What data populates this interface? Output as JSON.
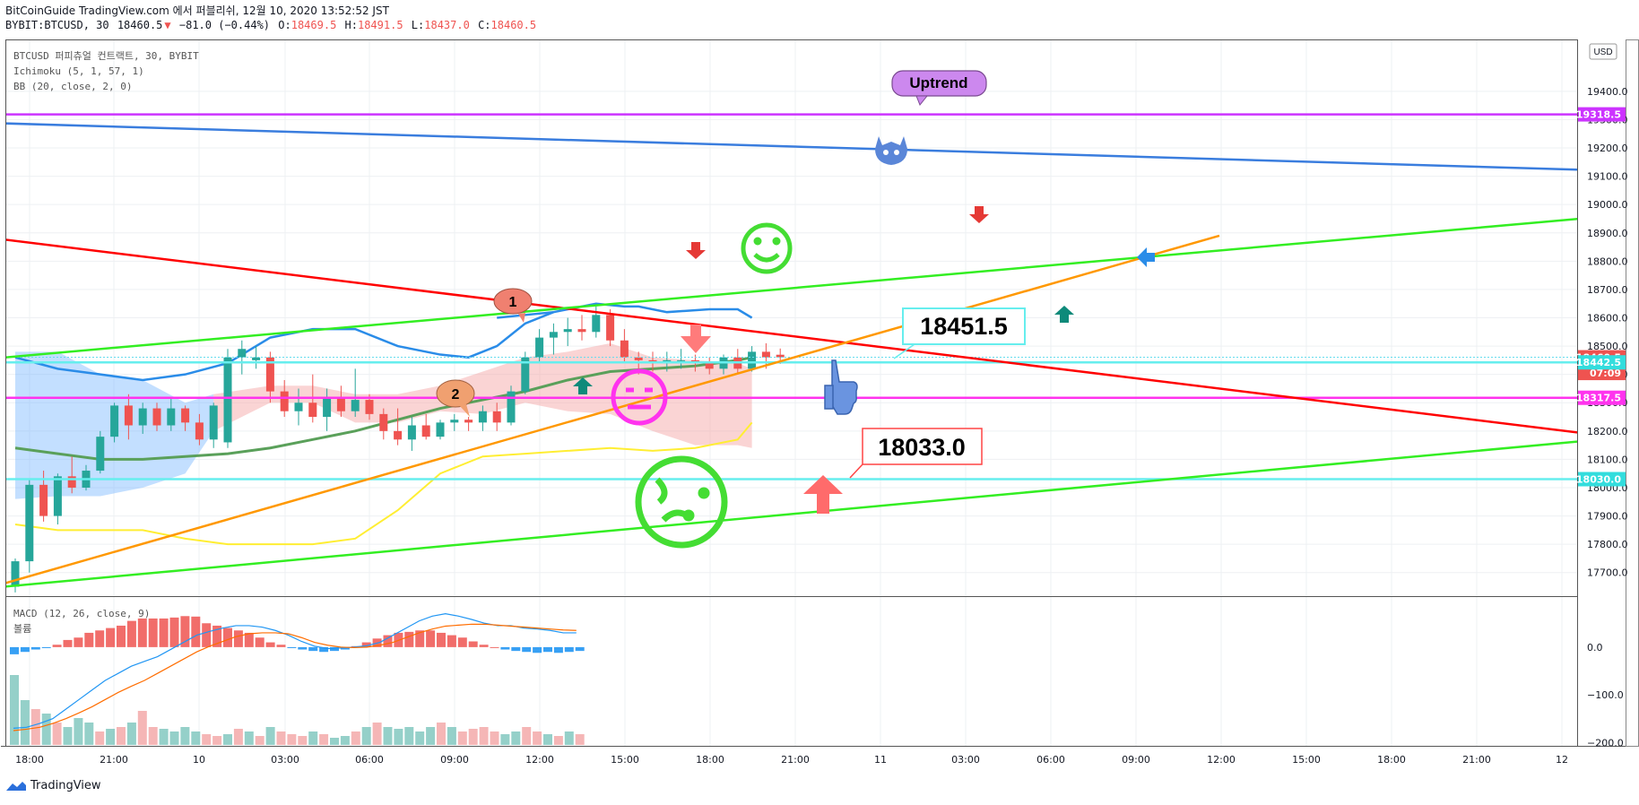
{
  "header": {
    "line1": "BitCoinGuide TradingView.com 에서 퍼블리쉬, 12월 10, 2020 13:52:52 JST",
    "symbol": "BYBIT:BTCUSD, 30",
    "last": "18460.5",
    "change": "−81.0 (−0.44%)",
    "o_label": "O:",
    "o": "18469.5",
    "h_label": "H:",
    "h": "18491.5",
    "l_label": "L:",
    "l": "18437.0",
    "c_label": "C:",
    "c": "18460.5"
  },
  "legend": {
    "line1": "BTCUSD 퍼피츄얼 컨트랙트, 30, BYBIT",
    "line2": "Ichimoku (5, 1, 57, 1)",
    "line3": "BB (20, close, 2, 0)"
  },
  "macd_legend": {
    "line1": "MACD (12, 26, close, 9)",
    "line2": "볼륨"
  },
  "currency": "USD",
  "footer": {
    "brand": "TradingView"
  },
  "colors": {
    "up": "#26a69a",
    "down": "#ef5350",
    "red_line": "#ff0000",
    "green_line": "#33ee22",
    "blue_line": "#3a7dde",
    "orange_line": "#ff9800",
    "purple_line": "#cc33ff",
    "magenta_line": "#ff33ee",
    "cyan_line": "#66eeee",
    "bb": "#2a8ce8",
    "lagging": "#5aa05a",
    "yellow": "#ffee33"
  },
  "chart_data": {
    "type": "candlestick",
    "instrument": "BYBIT:BTCUSD",
    "interval": "30",
    "y_range": [
      17620,
      19580
    ],
    "price_ticks": [
      "19400.0",
      "19300.0",
      "19200.0",
      "19100.0",
      "19000.0",
      "18900.0",
      "18800.0",
      "18700.0",
      "18600.0",
      "18500.0",
      "18400.0",
      "18300.0",
      "18200.0",
      "18100.0",
      "18000.0",
      "17900.0",
      "17800.0",
      "17700.0"
    ],
    "time_ticks": [
      "18:00",
      "21:00",
      "10",
      "03:00",
      "06:00",
      "09:00",
      "12:00",
      "15:00",
      "18:00",
      "21:00",
      "11",
      "03:00",
      "06:00",
      "09:00",
      "12:00",
      "15:00",
      "18:00",
      "21:00",
      "12"
    ],
    "price_labels": [
      {
        "text": "19318.5",
        "value": 19318.5,
        "color": "#cc33ff"
      },
      {
        "text": "18460.5",
        "value": 18460.5,
        "color": "#ef5350"
      },
      {
        "text": "07:09",
        "value": 18405,
        "color": "#ef5350"
      },
      {
        "text": "18442.5",
        "value": 18442.5,
        "color": "#33dddd"
      },
      {
        "text": "18317.5",
        "value": 18317.5,
        "color": "#ff33ee"
      },
      {
        "text": "18030.0",
        "value": 18030,
        "color": "#33dddd"
      }
    ],
    "candles": [
      {
        "o": 17650,
        "h": 17750,
        "l": 17630,
        "c": 17740
      },
      {
        "o": 17740,
        "h": 18030,
        "l": 17700,
        "c": 18010
      },
      {
        "o": 18010,
        "h": 18060,
        "l": 17880,
        "c": 17900
      },
      {
        "o": 17900,
        "h": 18050,
        "l": 17870,
        "c": 18040
      },
      {
        "o": 18040,
        "h": 18110,
        "l": 17980,
        "c": 18000
      },
      {
        "o": 18000,
        "h": 18080,
        "l": 17990,
        "c": 18060
      },
      {
        "o": 18060,
        "h": 18200,
        "l": 18050,
        "c": 18180
      },
      {
        "o": 18180,
        "h": 18300,
        "l": 18160,
        "c": 18290
      },
      {
        "o": 18290,
        "h": 18330,
        "l": 18170,
        "c": 18220
      },
      {
        "o": 18220,
        "h": 18300,
        "l": 18190,
        "c": 18280
      },
      {
        "o": 18280,
        "h": 18300,
        "l": 18200,
        "c": 18220
      },
      {
        "o": 18220,
        "h": 18320,
        "l": 18200,
        "c": 18280
      },
      {
        "o": 18280,
        "h": 18290,
        "l": 18200,
        "c": 18230
      },
      {
        "o": 18230,
        "h": 18260,
        "l": 18150,
        "c": 18170
      },
      {
        "o": 18170,
        "h": 18300,
        "l": 18140,
        "c": 18290
      },
      {
        "o": 18160,
        "h": 18490,
        "l": 18140,
        "c": 18460
      },
      {
        "o": 18460,
        "h": 18520,
        "l": 18400,
        "c": 18490
      },
      {
        "o": 18450,
        "h": 18500,
        "l": 18420,
        "c": 18460
      },
      {
        "o": 18460,
        "h": 18480,
        "l": 18300,
        "c": 18340
      },
      {
        "o": 18340,
        "h": 18380,
        "l": 18250,
        "c": 18270
      },
      {
        "o": 18270,
        "h": 18350,
        "l": 18220,
        "c": 18300
      },
      {
        "o": 18300,
        "h": 18400,
        "l": 18230,
        "c": 18250
      },
      {
        "o": 18250,
        "h": 18350,
        "l": 18200,
        "c": 18320
      },
      {
        "o": 18320,
        "h": 18360,
        "l": 18250,
        "c": 18270
      },
      {
        "o": 18270,
        "h": 18420,
        "l": 18250,
        "c": 18310
      },
      {
        "o": 18310,
        "h": 18330,
        "l": 18240,
        "c": 18260
      },
      {
        "o": 18260,
        "h": 18280,
        "l": 18170,
        "c": 18200
      },
      {
        "o": 18200,
        "h": 18280,
        "l": 18150,
        "c": 18170
      },
      {
        "o": 18170,
        "h": 18250,
        "l": 18130,
        "c": 18220
      },
      {
        "o": 18220,
        "h": 18260,
        "l": 18170,
        "c": 18180
      },
      {
        "o": 18180,
        "h": 18240,
        "l": 18170,
        "c": 18230
      },
      {
        "o": 18230,
        "h": 18260,
        "l": 18200,
        "c": 18240
      },
      {
        "o": 18240,
        "h": 18250,
        "l": 18200,
        "c": 18230
      },
      {
        "o": 18230,
        "h": 18290,
        "l": 18200,
        "c": 18270
      },
      {
        "o": 18270,
        "h": 18300,
        "l": 18200,
        "c": 18230
      },
      {
        "o": 18230,
        "h": 18360,
        "l": 18220,
        "c": 18340
      },
      {
        "o": 18340,
        "h": 18480,
        "l": 18330,
        "c": 18460
      },
      {
        "o": 18460,
        "h": 18560,
        "l": 18440,
        "c": 18530
      },
      {
        "o": 18530,
        "h": 18580,
        "l": 18470,
        "c": 18550
      },
      {
        "o": 18550,
        "h": 18600,
        "l": 18500,
        "c": 18560
      },
      {
        "o": 18560,
        "h": 18610,
        "l": 18520,
        "c": 18550
      },
      {
        "o": 18550,
        "h": 18640,
        "l": 18530,
        "c": 18610
      },
      {
        "o": 18610,
        "h": 18630,
        "l": 18500,
        "c": 18520
      },
      {
        "o": 18520,
        "h": 18560,
        "l": 18440,
        "c": 18460
      },
      {
        "o": 18460,
        "h": 18480,
        "l": 18400,
        "c": 18450
      },
      {
        "o": 18450,
        "h": 18480,
        "l": 18410,
        "c": 18440
      },
      {
        "o": 18440,
        "h": 18480,
        "l": 18410,
        "c": 18450
      },
      {
        "o": 18450,
        "h": 18490,
        "l": 18420,
        "c": 18450
      },
      {
        "o": 18450,
        "h": 18470,
        "l": 18410,
        "c": 18440
      },
      {
        "o": 18440,
        "h": 18460,
        "l": 18400,
        "c": 18420
      },
      {
        "o": 18420,
        "h": 18470,
        "l": 18400,
        "c": 18460
      },
      {
        "o": 18460,
        "h": 18490,
        "l": 18400,
        "c": 18420
      },
      {
        "o": 18420,
        "h": 18500,
        "l": 18410,
        "c": 18480
      },
      {
        "o": 18480,
        "h": 18510,
        "l": 18420,
        "c": 18460
      },
      {
        "o": 18469.5,
        "h": 18491.5,
        "l": 18437,
        "c": 18460.5
      }
    ],
    "bb_upper": [
      [
        34,
        18600
      ],
      [
        38,
        18620
      ],
      [
        41,
        18650
      ],
      [
        43,
        18640
      ],
      [
        44,
        18640
      ],
      [
        46,
        18620
      ],
      [
        49,
        18630
      ],
      [
        51,
        18630
      ],
      [
        52,
        18600
      ]
    ],
    "bb_upper_early": [
      [
        0,
        18460
      ],
      [
        3,
        18420
      ],
      [
        6,
        18400
      ],
      [
        9,
        18380
      ],
      [
        12,
        18400
      ],
      [
        15,
        18440
      ],
      [
        18,
        18530
      ],
      [
        21,
        18560
      ],
      [
        24,
        18560
      ],
      [
        27,
        18500
      ],
      [
        30,
        18470
      ],
      [
        32,
        18460
      ],
      [
        34,
        18500
      ],
      [
        36,
        18580
      ],
      [
        38,
        18620
      ]
    ],
    "bb_lower": [
      [
        0,
        17870
      ],
      [
        3,
        17850
      ],
      [
        6,
        17850
      ],
      [
        9,
        17850
      ],
      [
        12,
        17820
      ],
      [
        15,
        17800
      ],
      [
        18,
        17800
      ],
      [
        21,
        17800
      ],
      [
        24,
        17820
      ],
      [
        27,
        17920
      ],
      [
        30,
        18050
      ],
      [
        33,
        18110
      ],
      [
        36,
        18120
      ],
      [
        39,
        18130
      ],
      [
        42,
        18140
      ],
      [
        45,
        18130
      ],
      [
        48,
        18140
      ],
      [
        51,
        18170
      ],
      [
        52,
        18230
      ]
    ],
    "lagging_span": [
      [
        0,
        18140
      ],
      [
        3,
        18120
      ],
      [
        6,
        18100
      ],
      [
        9,
        18100
      ],
      [
        12,
        18110
      ],
      [
        15,
        18120
      ],
      [
        18,
        18140
      ],
      [
        21,
        18170
      ],
      [
        24,
        18200
      ],
      [
        27,
        18240
      ],
      [
        30,
        18280
      ],
      [
        33,
        18310
      ],
      [
        36,
        18340
      ],
      [
        39,
        18380
      ],
      [
        42,
        18410
      ],
      [
        45,
        18420
      ],
      [
        48,
        18430
      ],
      [
        51,
        18450
      ],
      [
        52,
        18460
      ]
    ],
    "cloud_blue": [
      [
        0,
        18480,
        17960
      ],
      [
        3,
        18480,
        17970
      ],
      [
        6,
        18400,
        17970
      ],
      [
        9,
        18380,
        18000
      ],
      [
        12,
        18300,
        18050
      ],
      [
        14,
        18330,
        18200
      ]
    ],
    "cloud_red": [
      [
        14,
        18330,
        18200
      ],
      [
        18,
        18360,
        18300
      ],
      [
        21,
        18360,
        18300
      ],
      [
        24,
        18330,
        18230
      ],
      [
        27,
        18330,
        18230
      ],
      [
        30,
        18360,
        18270
      ],
      [
        33,
        18410,
        18260
      ],
      [
        36,
        18460,
        18300
      ],
      [
        39,
        18480,
        18270
      ],
      [
        42,
        18510,
        18260
      ],
      [
        45,
        18460,
        18200
      ],
      [
        48,
        18450,
        18150
      ],
      [
        51,
        18440,
        18150
      ],
      [
        52,
        18420,
        18140
      ]
    ],
    "trend_lines": [
      {
        "color": "#3a7dde",
        "from": [
          -3,
          19290
        ],
        "to": [
          160,
          19050
        ]
      },
      {
        "color": "#ff0000",
        "from": [
          -3,
          18890
        ],
        "to": [
          160,
          17890
        ]
      },
      {
        "color": "#33ee22",
        "from": [
          -3,
          18450
        ],
        "to": [
          140,
          19080
        ]
      },
      {
        "color": "#33ee22",
        "from": [
          -3,
          17640
        ],
        "to": [
          140,
          18300
        ]
      },
      {
        "color": "#ff9800",
        "from": [
          -3,
          17630
        ],
        "to": [
          85,
          18890
        ]
      }
    ],
    "horizontal_lines": [
      {
        "value": 19318.5,
        "color": "#cc33ff"
      },
      {
        "value": 18442.5,
        "color": "#66eeee"
      },
      {
        "value": 18317.5,
        "color": "#ff33ee"
      },
      {
        "value": 18030,
        "color": "#66eeee"
      }
    ],
    "callouts": [
      {
        "text": "Uptrend",
        "type": "bubble",
        "color": "#cc88ee"
      },
      {
        "text": "18451.5",
        "type": "box",
        "border": "#66eeee"
      },
      {
        "text": "18033.0",
        "type": "box",
        "border": "#ff4444"
      },
      {
        "text": "1",
        "type": "bubble",
        "color": "#f08070"
      },
      {
        "text": "2",
        "type": "bubble",
        "color": "#f0a070"
      }
    ],
    "macd": {
      "y_ticks": [
        "0.0",
        "−100.0",
        "−200.0"
      ],
      "y_range": [
        -205,
        105
      ],
      "histogram": [
        -15,
        -10,
        -5,
        -2,
        5,
        15,
        20,
        30,
        35,
        40,
        45,
        55,
        60,
        60,
        60,
        62,
        65,
        64,
        50,
        45,
        40,
        35,
        30,
        20,
        10,
        5,
        -2,
        -5,
        -8,
        -10,
        -8,
        -5,
        2,
        10,
        18,
        25,
        30,
        32,
        35,
        35,
        30,
        25,
        20,
        12,
        5,
        0,
        -5,
        -8,
        -10,
        -12,
        -10,
        -12,
        -10,
        -8
      ],
      "macd_line": [
        -170,
        -168,
        -160,
        -150,
        -130,
        -110,
        -90,
        -70,
        -55,
        -40,
        -30,
        -20,
        -5,
        10,
        25,
        33,
        40,
        45,
        45,
        42,
        35,
        25,
        12,
        2,
        -3,
        -2,
        0,
        3,
        10,
        25,
        40,
        55,
        65,
        70,
        65,
        58,
        50,
        45,
        45,
        40,
        38,
        35,
        30,
        30
      ],
      "signal_line": [
        -175,
        -172,
        -168,
        -160,
        -150,
        -138,
        -125,
        -110,
        -95,
        -82,
        -70,
        -55,
        -40,
        -25,
        -10,
        2,
        12,
        22,
        28,
        30,
        30,
        28,
        20,
        10,
        4,
        0,
        -1,
        0,
        4,
        10,
        20,
        30,
        38,
        44,
        46,
        48,
        48,
        46,
        44,
        42,
        40,
        38,
        36,
        35
      ],
      "volume": [
        78,
        50,
        40,
        35,
        25,
        20,
        30,
        25,
        15,
        18,
        20,
        25,
        38,
        20,
        18,
        15,
        20,
        15,
        12,
        10,
        12,
        18,
        15,
        10,
        20,
        15,
        12,
        10,
        15,
        12,
        8,
        10,
        15,
        20,
        25,
        20,
        18,
        20,
        15,
        20,
        25,
        20,
        15,
        18,
        20,
        15,
        12,
        15,
        20,
        15,
        12,
        10,
        15,
        12
      ]
    }
  }
}
